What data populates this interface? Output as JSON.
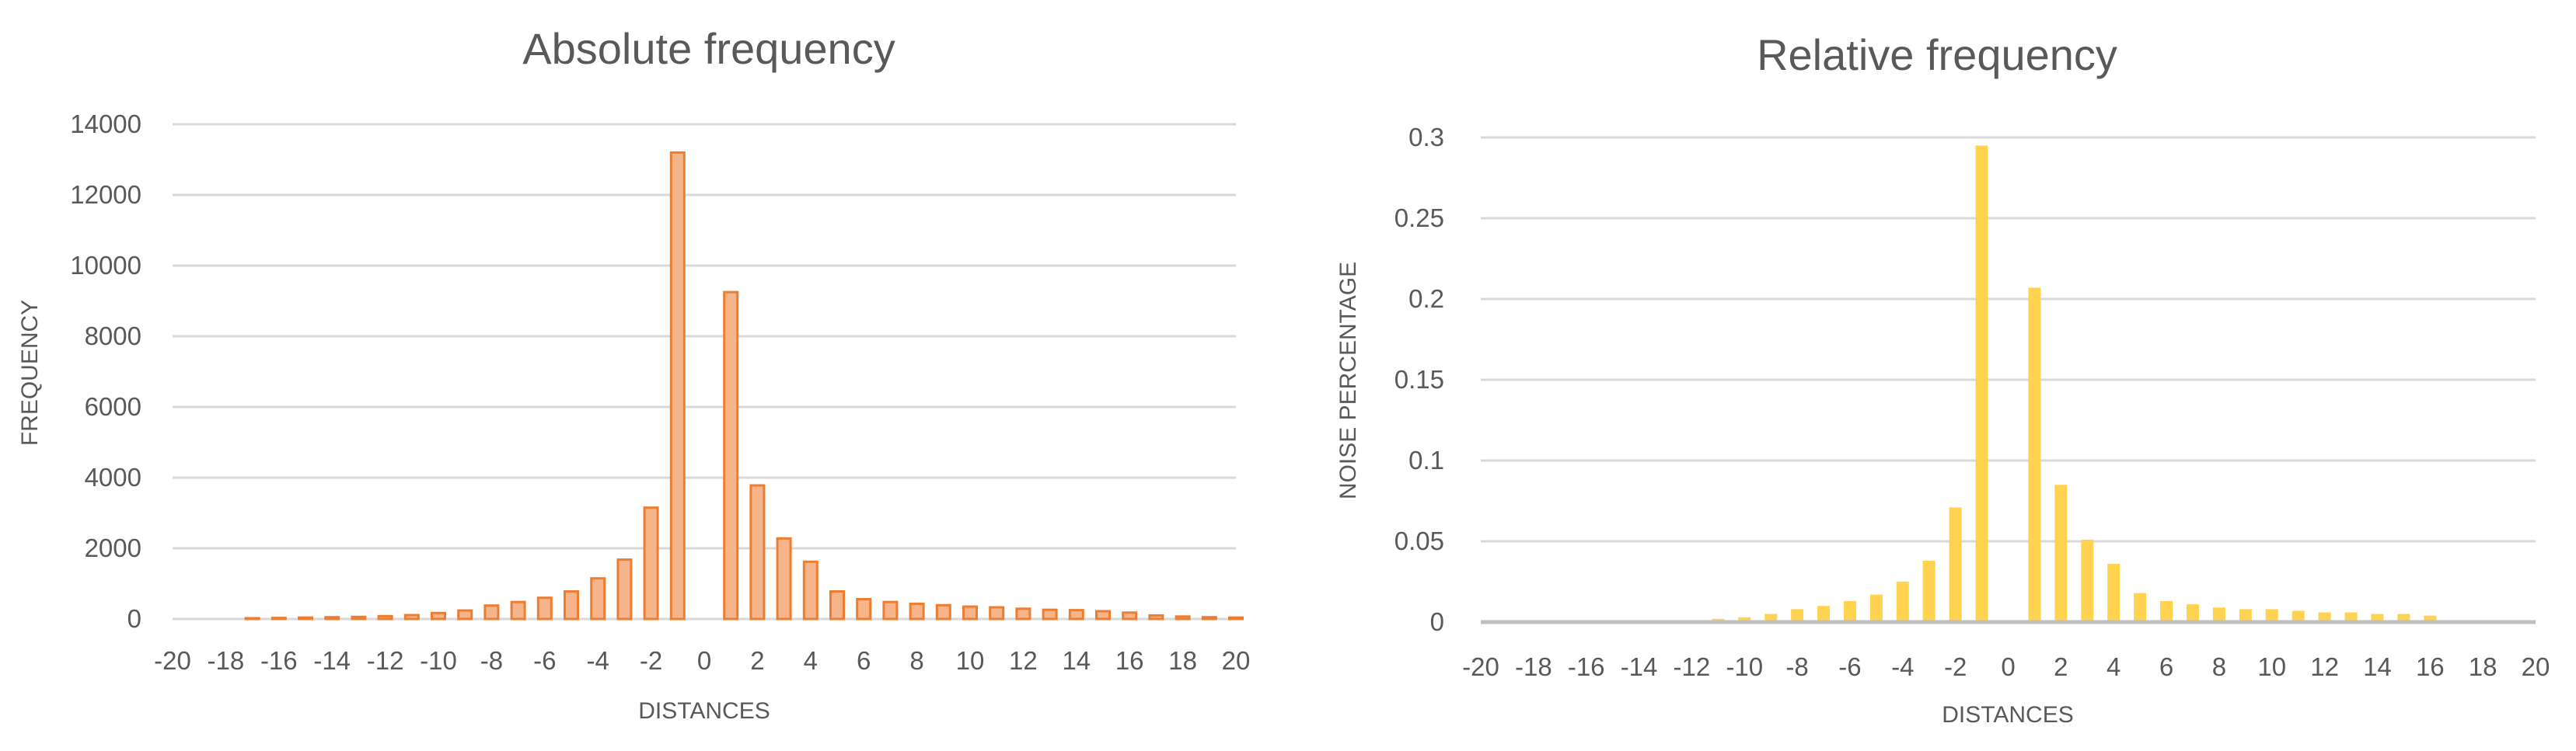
{
  "chart_data": [
    {
      "type": "bar",
      "title": "Absolute frequency",
      "xlabel": "DISTANCES",
      "ylabel": "FREQUENCY",
      "xlim": [
        -20,
        20
      ],
      "ylim": [
        0,
        14000
      ],
      "xticks": [
        -20,
        -18,
        -16,
        -14,
        -12,
        -10,
        -8,
        -6,
        -4,
        -2,
        0,
        2,
        4,
        6,
        8,
        10,
        12,
        14,
        16,
        18,
        20
      ],
      "yticks": [
        0,
        2000,
        4000,
        6000,
        8000,
        10000,
        12000,
        14000
      ],
      "grid": true,
      "colors": {
        "fill": "#f6b48a",
        "stroke": "#ed7d31"
      },
      "x": [
        -17,
        -16,
        -15,
        -14,
        -13,
        -12,
        -11,
        -10,
        -9,
        -8,
        -7,
        -6,
        -5,
        -4,
        -3,
        -2,
        -1,
        1,
        2,
        3,
        4,
        5,
        6,
        7,
        8,
        9,
        10,
        11,
        12,
        13,
        14,
        15,
        16,
        17,
        18,
        19,
        20
      ],
      "values": [
        20,
        30,
        40,
        50,
        60,
        80,
        110,
        170,
        240,
        380,
        480,
        600,
        780,
        1150,
        1680,
        3150,
        13200,
        9250,
        3780,
        2280,
        1620,
        780,
        560,
        480,
        430,
        390,
        350,
        330,
        290,
        260,
        250,
        220,
        180,
        100,
        70,
        50,
        40
      ]
    },
    {
      "type": "bar",
      "title": "Relative frequency",
      "xlabel": "DISTANCES",
      "ylabel": "NOISE PERCENTAGE",
      "xlim": [
        -20,
        20
      ],
      "ylim": [
        0,
        0.3
      ],
      "xticks": [
        -20,
        -18,
        -16,
        -14,
        -12,
        -10,
        -8,
        -6,
        -4,
        -2,
        0,
        2,
        4,
        6,
        8,
        10,
        12,
        14,
        16,
        18,
        20
      ],
      "yticks": [
        0,
        0.05,
        0.1,
        0.15,
        0.2,
        0.25,
        0.3
      ],
      "grid": true,
      "colors": {
        "fill": "#ffd34f",
        "axis": "#bfbfbf"
      },
      "x": [
        -11,
        -10,
        -9,
        -8,
        -7,
        -6,
        -5,
        -4,
        -3,
        -2,
        -1,
        1,
        2,
        3,
        4,
        5,
        6,
        7,
        8,
        9,
        10,
        11,
        12,
        13,
        14,
        15,
        16
      ],
      "values": [
        0.002,
        0.003,
        0.005,
        0.008,
        0.01,
        0.013,
        0.017,
        0.025,
        0.038,
        0.071,
        0.295,
        0.207,
        0.085,
        0.051,
        0.036,
        0.018,
        0.013,
        0.011,
        0.009,
        0.008,
        0.008,
        0.007,
        0.006,
        0.006,
        0.005,
        0.005,
        0.004
      ]
    }
  ]
}
